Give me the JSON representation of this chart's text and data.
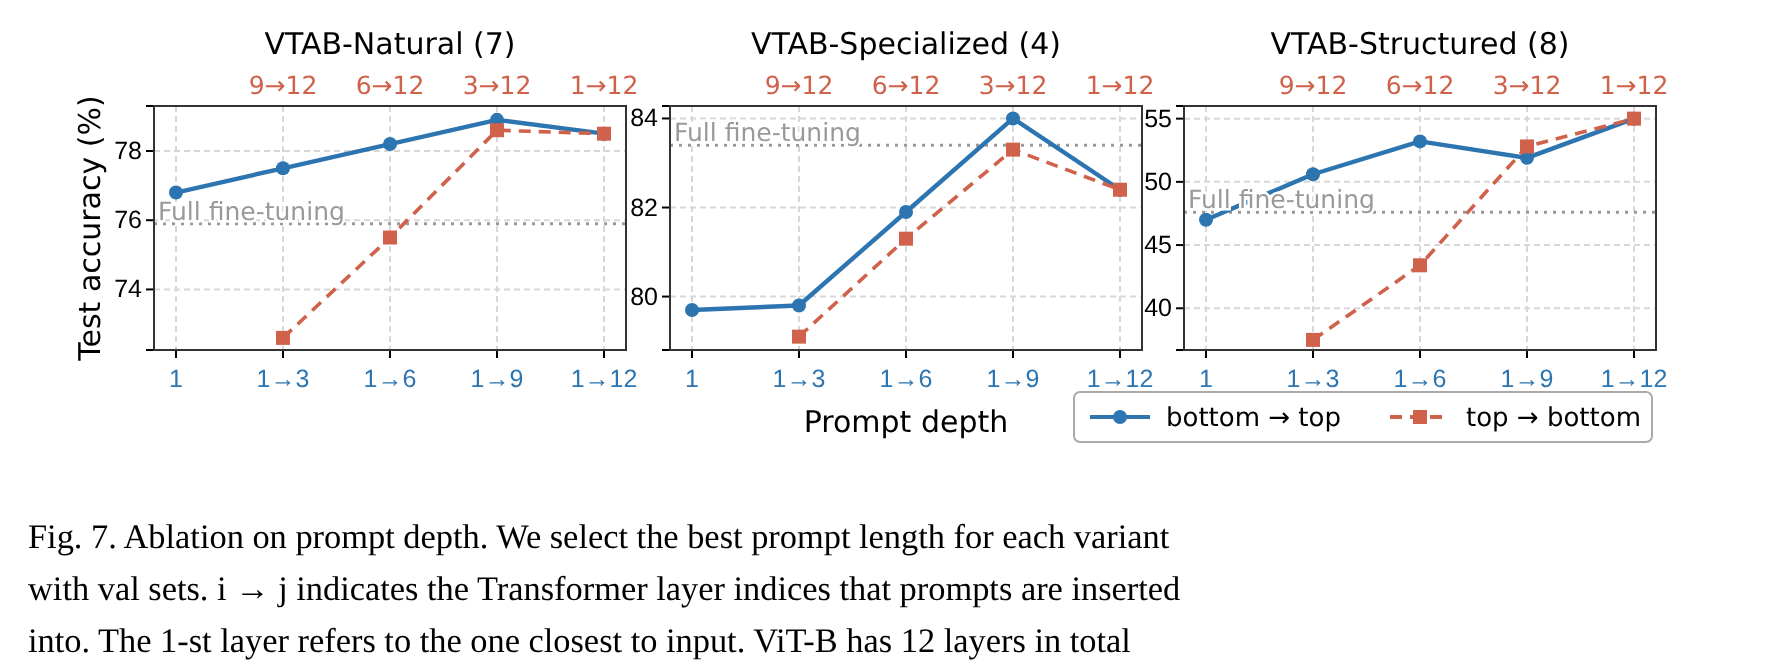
{
  "chart_data": [
    {
      "type": "line",
      "title": "VTAB-Natural (7)",
      "ylabel": "Test accuracy (%)",
      "categories": [
        "1",
        "1→3",
        "1→6",
        "1→9",
        "1→12"
      ],
      "ylim": [
        72.25,
        79.3
      ],
      "yticks": [
        74,
        76,
        78
      ],
      "grid": true,
      "legend": false,
      "ref_lines": [
        {
          "axis": "y",
          "value": 75.9,
          "label": "Full fine-tuning",
          "color": "#999999",
          "line_style": "dotted"
        }
      ],
      "annotations": [
        "9→12",
        "6→12",
        "3→12",
        "1→12"
      ],
      "series": [
        {
          "color": "#2c75b0",
          "marker": "circle",
          "line_style": "solid",
          "values": [
            76.8,
            77.5,
            78.2,
            78.9,
            78.5
          ]
        },
        {
          "color": "#d0614a",
          "marker": "square",
          "line_style": "dashed",
          "values": [
            null,
            72.6,
            75.5,
            78.6,
            78.5
          ]
        }
      ]
    },
    {
      "type": "line",
      "title": "VTAB-Specialized (4)",
      "xlabel": "Prompt depth",
      "categories": [
        "1",
        "1→3",
        "1→6",
        "1→9",
        "1→12"
      ],
      "ylim": [
        78.8,
        84.28
      ],
      "yticks": [
        80,
        82,
        84
      ],
      "grid": true,
      "legend": false,
      "ref_lines": [
        {
          "axis": "y",
          "value": 83.4,
          "label": "Full fine-tuning",
          "color": "#999999",
          "line_style": "dotted"
        }
      ],
      "annotations": [
        "9→12",
        "6→12",
        "3→12",
        "1→12"
      ],
      "series": [
        {
          "color": "#2c75b0",
          "marker": "circle",
          "line_style": "solid",
          "values": [
            79.7,
            79.8,
            81.9,
            84.0,
            82.4
          ]
        },
        {
          "color": "#d0614a",
          "marker": "square",
          "line_style": "dashed",
          "values": [
            null,
            79.1,
            81.3,
            83.3,
            82.4
          ]
        }
      ]
    },
    {
      "type": "line",
      "title": "VTAB-Structured (8)",
      "categories": [
        "1",
        "1→3",
        "1→6",
        "1→9",
        "1→12"
      ],
      "ylim": [
        36.7,
        56.0
      ],
      "yticks": [
        40,
        45,
        50,
        55
      ],
      "grid": true,
      "legend": "bottom",
      "ref_lines": [
        {
          "axis": "y",
          "value": 47.6,
          "label": "Full fine-tuning",
          "color": "#999999",
          "line_style": "dotted"
        }
      ],
      "annotations": [
        "9→12",
        "6→12",
        "3→12",
        "1→12",
        "Fig. 7. Ablation on prompt depth. We select the best prompt length for each variant",
        "with val sets. i → j indicates the Transformer layer indices that prompts are inserted",
        "into. The 1-st layer refers to the one closest to input. ViT-B has 12 layers in total"
      ],
      "series": [
        {
          "name": "bottom → top",
          "color": "#2c75b0",
          "marker": "circle",
          "line_style": "solid",
          "values": [
            47.0,
            50.6,
            53.2,
            51.9,
            55.0
          ]
        },
        {
          "name": "top → bottom",
          "color": "#d0614a",
          "marker": "square",
          "line_style": "dashed",
          "values": [
            null,
            37.5,
            43.4,
            52.8,
            55.0
          ]
        }
      ]
    }
  ]
}
